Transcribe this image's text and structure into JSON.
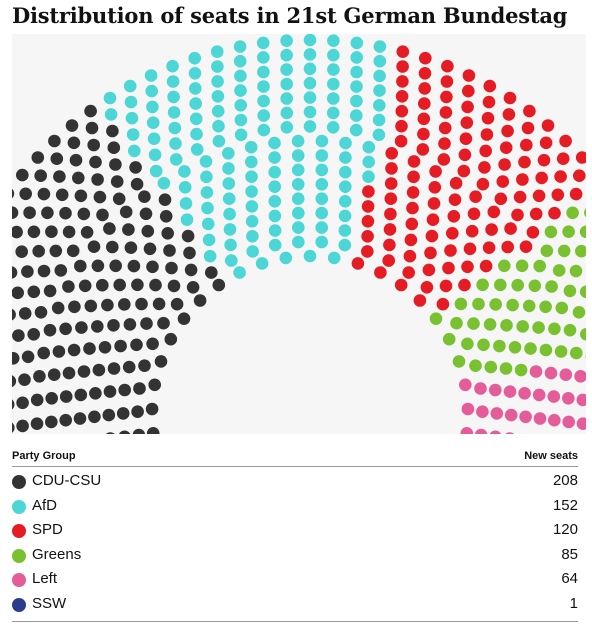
{
  "title": "Distribution of seats in 21st German Bundestag",
  "chart_data": {
    "type": "parliament",
    "title": "Distribution of seats in 21st German Bundestag",
    "total_seats": 630,
    "series": [
      {
        "name": "CDU-CSU",
        "value": 208,
        "color": "#333333"
      },
      {
        "name": "AfD",
        "value": 152,
        "color": "#4dd6d6"
      },
      {
        "name": "SPD",
        "value": 120,
        "color": "#e51c23"
      },
      {
        "name": "Greens",
        "value": 85,
        "color": "#7ac131"
      },
      {
        "name": "Left",
        "value": 64,
        "color": "#e45d99"
      },
      {
        "name": "SSW",
        "value": 1,
        "color": "#2c3c8c"
      }
    ]
  },
  "table": {
    "header_party": "Party Group",
    "header_seats": "New seats",
    "rows": [
      {
        "party": "CDU-CSU",
        "seats": "208",
        "color": "#333333"
      },
      {
        "party": "AfD",
        "seats": "152",
        "color": "#4dd6d6"
      },
      {
        "party": "SPD",
        "seats": "120",
        "color": "#e51c23"
      },
      {
        "party": "Greens",
        "seats": "85",
        "color": "#7ac131"
      },
      {
        "party": "Left",
        "seats": "64",
        "color": "#e45d99"
      },
      {
        "party": "SSW",
        "seats": "1",
        "color": "#2c3c8c"
      }
    ]
  }
}
